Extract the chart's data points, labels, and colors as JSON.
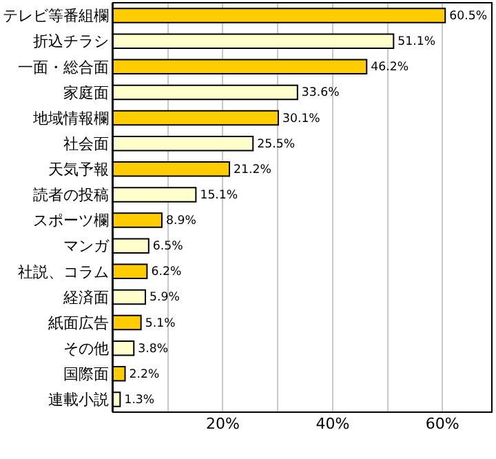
{
  "chart_data": {
    "type": "bar",
    "orientation": "horizontal",
    "categories": [
      "テレビ等番組欄",
      "折込チラシ",
      "一面・総合面",
      "家庭面",
      "地域情報欄",
      "社会面",
      "天気予報",
      "読者の投稿",
      "スポーツ欄",
      "マンガ",
      "社説、コラム",
      "経済面",
      "紙面広告",
      "その他",
      "国際面",
      "連載小説"
    ],
    "values": [
      60.5,
      51.1,
      46.2,
      33.6,
      30.1,
      25.5,
      21.2,
      15.1,
      8.9,
      6.5,
      6.2,
      5.9,
      5.1,
      3.8,
      2.2,
      1.3
    ],
    "colors": [
      "#ffcc00",
      "#ffffcc",
      "#ffcc00",
      "#ffffcc",
      "#ffcc00",
      "#ffffcc",
      "#ffcc00",
      "#ffffcc",
      "#ffcc00",
      "#ffffcc",
      "#ffcc00",
      "#ffffcc",
      "#ffcc00",
      "#ffffcc",
      "#ffcc00",
      "#ffffcc"
    ],
    "value_labels": [
      "60.5%",
      "51.1%",
      "46.2%",
      "33.6%",
      "30.1%",
      "25.5%",
      "21.2%",
      "15.1%",
      "8.9%",
      "6.5%",
      "6.2%",
      "5.9%",
      "5.1%",
      "3.8%",
      "2.2%",
      "1.3%"
    ],
    "xlim": [
      0,
      69
    ],
    "xticks": [
      {
        "value": 10,
        "label": null
      },
      {
        "value": 20,
        "label": "20%"
      },
      {
        "value": 30,
        "label": null
      },
      {
        "value": 40,
        "label": "40%"
      },
      {
        "value": 50,
        "label": null
      },
      {
        "value": 60,
        "label": "60%"
      }
    ],
    "grid": true
  }
}
